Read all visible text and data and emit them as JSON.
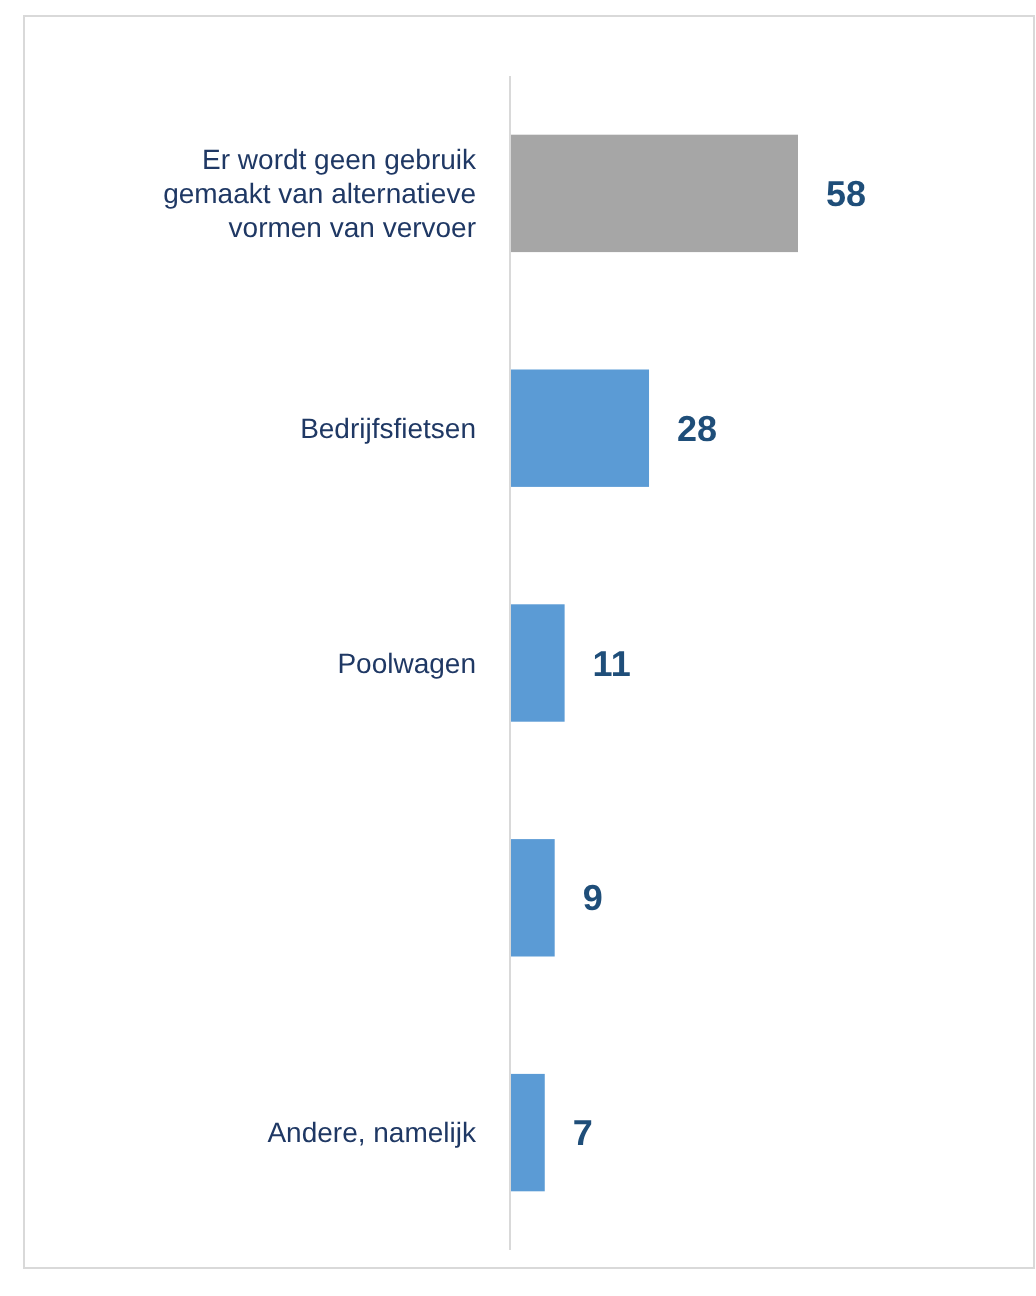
{
  "chart_data": {
    "type": "bar",
    "orientation": "horizontal",
    "categories": [
      "Er wordt geen gebruik gemaakt van alternatieve vormen van vervoer",
      "Bedrijfsfietsen",
      "Poolwagen",
      null,
      "Andere, namelijk"
    ],
    "values": [
      58,
      28,
      11,
      9,
      7
    ],
    "colors": [
      "#a6a6a6",
      "#5b9bd5",
      "#5b9bd5",
      "#5b9bd5",
      "#5b9bd5"
    ],
    "data_labels": true
  }
}
